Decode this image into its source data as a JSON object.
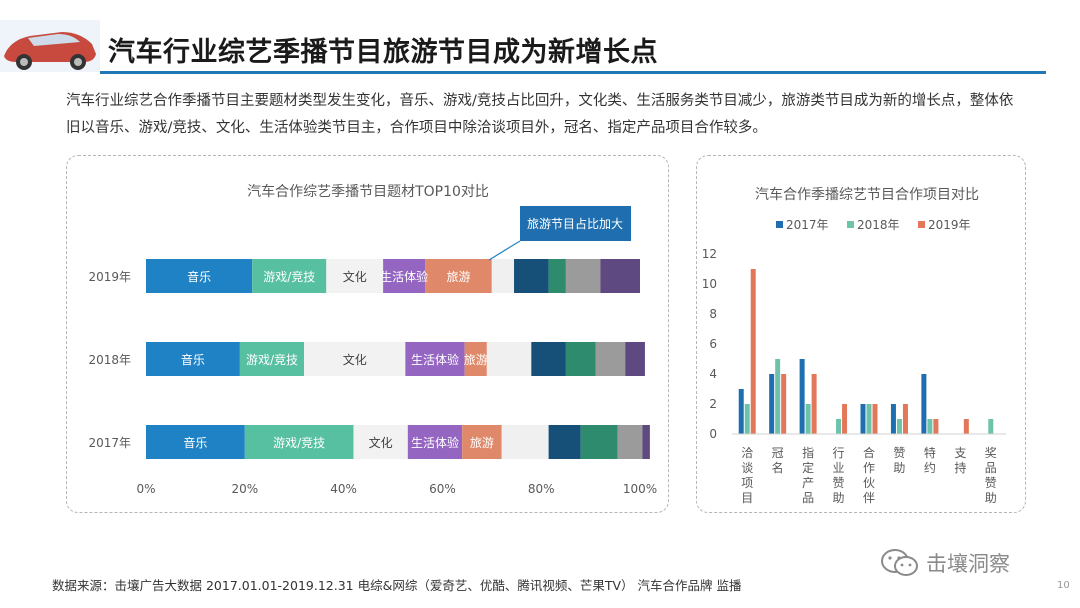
{
  "header": {
    "title": "汽车行业综艺季播节目旅游节目成为新增长点",
    "description": "汽车行业综艺合作季播节目主要题材类型发生变化，音乐、游戏/竞技占比回升，文化类、生活服务类节目减少，旅游类节目成为新的增长点，整体依旧以音乐、游戏/竞技、文化、生活体验类节目主，合作项目中除洽谈项目外，冠名、指定产品项目合作较多。"
  },
  "chart_data": [
    {
      "type": "bar",
      "orientation": "horizontal",
      "stacked": "percent",
      "title": "汽车合作综艺季播节目题材TOP10对比",
      "categories": [
        "2019年",
        "2018年",
        "2017年"
      ],
      "x_ticks": [
        "0%",
        "20%",
        "40%",
        "60%",
        "80%",
        "100%"
      ],
      "xlim": [
        0,
        100
      ],
      "callout": "旅游节目占比加大",
      "series": [
        {
          "name": "音乐",
          "color": "#1f82c4",
          "values": [
            21.5,
            19,
            20
          ]
        },
        {
          "name": "游戏/竞技",
          "color": "#57c0a0",
          "values": [
            15,
            13,
            22
          ]
        },
        {
          "name": "文化",
          "color": "#f2f2f2",
          "values": [
            11.5,
            20.5,
            11
          ]
        },
        {
          "name": "生活体验",
          "color": "#9466c2",
          "values": [
            8.5,
            12,
            11
          ]
        },
        {
          "name": "旅游",
          "color": "#e0896a",
          "values": [
            13.5,
            4.5,
            8
          ]
        },
        {
          "name": "",
          "color": "#f0f0f0",
          "values": [
            4.5,
            9,
            9.5
          ]
        },
        {
          "name": "",
          "color": "#164f78",
          "values": [
            7,
            7,
            6.5
          ]
        },
        {
          "name": "",
          "color": "#2e8b6e",
          "values": [
            3.5,
            6,
            7.5
          ]
        },
        {
          "name": "",
          "color": "#9b9b9b",
          "values": [
            7,
            6,
            5
          ]
        },
        {
          "name": "",
          "color": "#5e4a80",
          "values": [
            8,
            4,
            1.5
          ]
        }
      ]
    },
    {
      "type": "bar",
      "title": "汽车合作季播综艺节目合作项目对比",
      "categories": [
        "洽谈项目",
        "冠名",
        "指定产品",
        "行业赞助",
        "合作伙伴",
        "赞助",
        "特约",
        "支持",
        "奖品赞助"
      ],
      "ylim": [
        0,
        12
      ],
      "y_ticks": [
        "0",
        "2",
        "4",
        "6",
        "8",
        "10",
        "12"
      ],
      "legend_position": "top",
      "series": [
        {
          "name": "2017年",
          "color": "#1f6fb0",
          "values": [
            3,
            4,
            5,
            0,
            2,
            2,
            4,
            0,
            0
          ]
        },
        {
          "name": "2018年",
          "color": "#6cc3a9",
          "values": [
            2,
            5,
            2,
            1,
            2,
            1,
            1,
            0,
            1
          ]
        },
        {
          "name": "2019年",
          "color": "#e2775a",
          "values": [
            11,
            4,
            4,
            2,
            2,
            2,
            1,
            1,
            0
          ]
        }
      ]
    }
  ],
  "footer": {
    "source": "数据来源：击壤广告大数据 2017.01.01-2019.12.31 电综&网综（爱奇艺、优酷、腾讯视频、芒果TV） 汽车合作品牌 监播",
    "brand": "击壤洞察",
    "page": "10"
  },
  "icons": [
    "car-image",
    "wechat-icon"
  ]
}
